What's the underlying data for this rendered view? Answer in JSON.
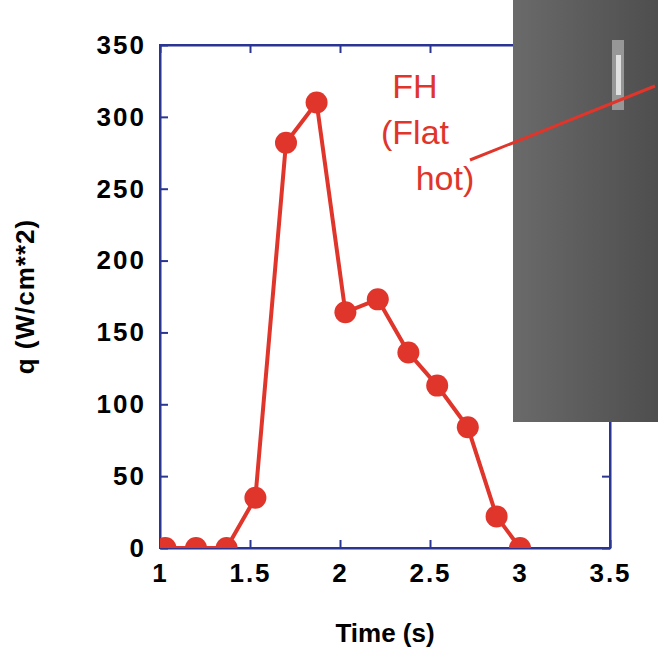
{
  "chart_data": {
    "type": "line",
    "x_label": "Time (s)",
    "y_label": "q (W/cm**2)",
    "annotation": "FH (Flat hot)",
    "x": [
      1.03,
      1.2,
      1.37,
      1.53,
      1.7,
      1.87,
      2.03,
      2.21,
      2.38,
      2.54,
      2.71,
      2.87,
      3.0
    ],
    "values": [
      0,
      0,
      0,
      35,
      282,
      310,
      164,
      173,
      136,
      113,
      84,
      22,
      0
    ],
    "color": "#e0352b",
    "marker": "circle",
    "xlim": [
      1,
      3.5
    ],
    "xticks": [
      1,
      1.5,
      2,
      2.5,
      3,
      3.5
    ],
    "ylim": [
      0,
      350
    ],
    "yticks": [
      0,
      50,
      100,
      150,
      200,
      250,
      300,
      350
    ],
    "grid": false
  }
}
